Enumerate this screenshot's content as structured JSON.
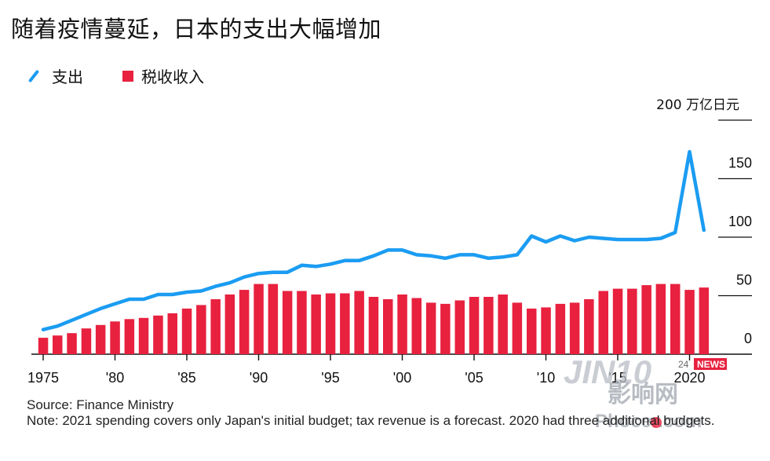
{
  "title": "随着疫情蔓延，日本的支出大幅增加",
  "legend": {
    "spending": "支出",
    "tax": "税收收入"
  },
  "colors": {
    "spending": "#1b9cf2",
    "tax": "#e8213f",
    "grid": "#111111"
  },
  "footnote": {
    "source": "Source: Finance Ministry",
    "note": "Note: 2021 spending covers only Japan's initial budget; tax revenue is a forecast. 2020 had three additional budgets."
  },
  "watermark": {
    "brand": "JIN10",
    "badge": "NEWS",
    "num": "24",
    "cn": "影响网",
    "url": "Phocer.com"
  },
  "chart_data": {
    "type": "bar+line",
    "title": "随着疫情蔓延，日本的支出大幅增加",
    "unit": "万亿日元",
    "ylim": [
      0,
      200
    ],
    "yticks": [
      0,
      50,
      100,
      150,
      200
    ],
    "y_top_label": "200 万亿日元",
    "x": [
      1975,
      1976,
      1977,
      1978,
      1979,
      1980,
      1981,
      1982,
      1983,
      1984,
      1985,
      1986,
      1987,
      1988,
      1989,
      1990,
      1991,
      1992,
      1993,
      1994,
      1995,
      1996,
      1997,
      1998,
      1999,
      2000,
      2001,
      2002,
      2003,
      2004,
      2005,
      2006,
      2007,
      2008,
      2009,
      2010,
      2011,
      2012,
      2013,
      2014,
      2015,
      2016,
      2017,
      2018,
      2019,
      2020,
      2021
    ],
    "xtick_labels": [
      {
        "year": 1975,
        "label": "1975"
      },
      {
        "year": 1980,
        "label": "'80"
      },
      {
        "year": 1985,
        "label": "'85"
      },
      {
        "year": 1990,
        "label": "'90"
      },
      {
        "year": 1995,
        "label": "'95"
      },
      {
        "year": 2000,
        "label": "'00"
      },
      {
        "year": 2005,
        "label": "'05"
      },
      {
        "year": 2010,
        "label": "'10"
      },
      {
        "year": 2015,
        "label": "'15"
      },
      {
        "year": 2020,
        "label": "2020"
      }
    ],
    "series": [
      {
        "name": "税收收入",
        "type": "bar",
        "values": [
          14,
          16,
          18,
          22,
          25,
          28,
          30,
          31,
          33,
          35,
          39,
          42,
          47,
          51,
          55,
          60,
          60,
          54,
          54,
          51,
          52,
          52,
          54,
          49,
          47,
          51,
          48,
          44,
          43,
          46,
          49,
          49,
          51,
          44,
          39,
          40,
          43,
          44,
          47,
          54,
          56,
          56,
          59,
          60,
          60,
          55,
          57
        ]
      },
      {
        "name": "支出",
        "type": "line",
        "values": [
          21,
          24,
          29,
          34,
          39,
          43,
          47,
          47,
          51,
          51,
          53,
          54,
          58,
          61,
          66,
          69,
          70,
          70,
          76,
          75,
          77,
          80,
          80,
          84,
          89,
          89,
          85,
          84,
          82,
          85,
          85,
          82,
          83,
          85,
          101,
          96,
          101,
          97,
          100,
          99,
          98,
          98,
          98,
          99,
          104,
          173,
          106
        ]
      }
    ]
  }
}
